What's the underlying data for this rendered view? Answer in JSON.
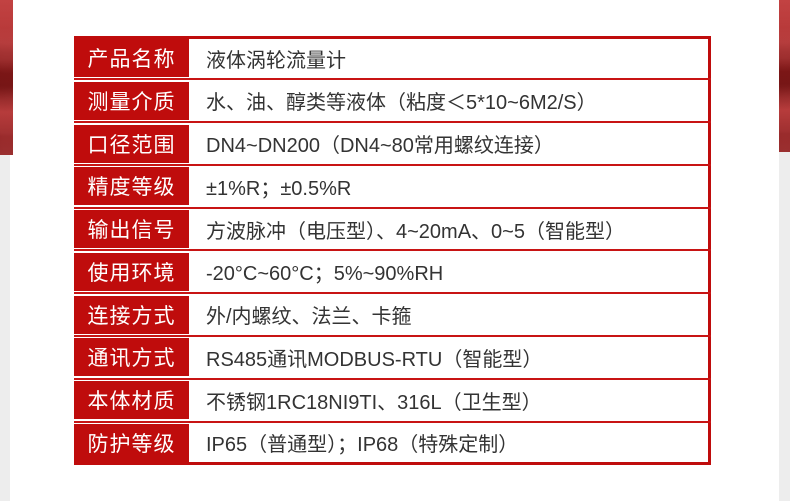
{
  "page": {
    "kind": "product-specification-table",
    "background": "#ffffff"
  },
  "colors": {
    "accent_red": "#bf0c0c",
    "separator_red": "#c81414",
    "edge_gray": "#ededed",
    "label_text": "#ffffff",
    "value_text": "#333333"
  },
  "decor": {
    "left_texture": "red-photo-edge",
    "right_texture": "red-photo-edge"
  },
  "spec_table": {
    "rows": [
      {
        "label": "产品名称",
        "value": "液体涡轮流量计"
      },
      {
        "label": "测量介质",
        "value": "水、油、醇类等液体（粘度＜5*10~6M2/S）"
      },
      {
        "label": "口径范围",
        "value": "DN4~DN200（DN4~80常用螺纹连接）"
      },
      {
        "label": "精度等级",
        "value": "±1%R；±0.5%R"
      },
      {
        "label": "输出信号",
        "value": "方波脉冲（电压型）、4~20mA、0~5（智能型）"
      },
      {
        "label": "使用环境",
        "value": "-20°C~60°C；5%~90%RH"
      },
      {
        "label": "连接方式",
        "value": "外/内螺纹、法兰、卡箍"
      },
      {
        "label": "通讯方式",
        "value": "RS485通讯MODBUS-RTU（智能型）"
      },
      {
        "label": "本体材质",
        "value": "不锈钢1RC18NI9TI、316L（卫生型）"
      },
      {
        "label": "防护等级",
        "value": "IP65（普通型）；IP68（特殊定制）"
      }
    ]
  }
}
